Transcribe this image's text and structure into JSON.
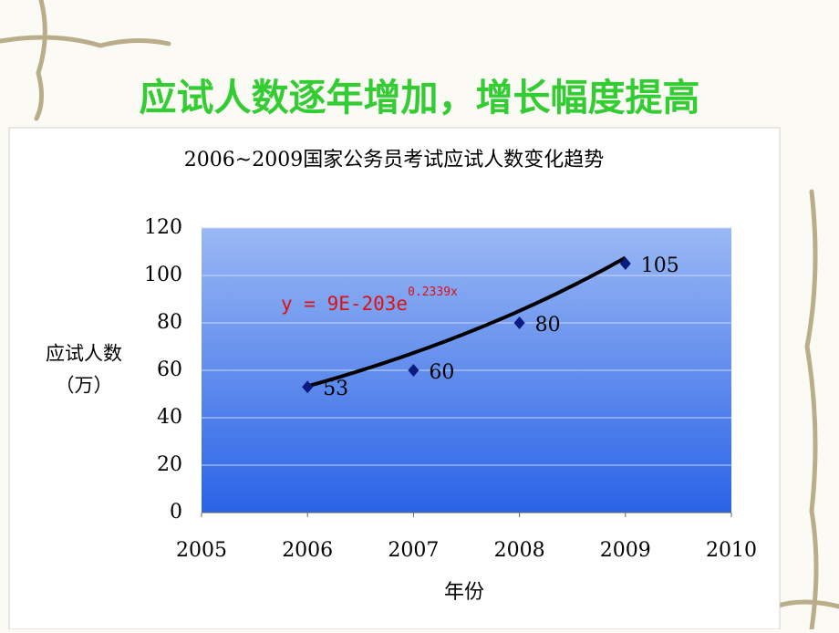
{
  "slide_title": "应试人数逐年增加，增长幅度提高",
  "chart_data": {
    "type": "scatter",
    "title": "2006~2009国家公务员考试应试人数变化趋势",
    "x_label": "年份",
    "y_label_lines": [
      "应试人数",
      "（万）"
    ],
    "x": [
      2006,
      2007,
      2008,
      2009
    ],
    "series": [
      {
        "name": "应试人数",
        "color": "#0a1a80",
        "values": [
          53,
          60,
          80,
          105
        ]
      }
    ],
    "xlim": [
      2005,
      2010
    ],
    "xticks": [
      2005,
      2006,
      2007,
      2008,
      2009,
      2010
    ],
    "ylim": [
      0,
      120
    ],
    "yticks": [
      0,
      20,
      40,
      60,
      80,
      100,
      120
    ],
    "grid": true,
    "trendline": {
      "kind": "exponential",
      "coefficient": 9e-203,
      "rate": 0.2339,
      "color": "#000000",
      "label_base": "y = 9E-203e",
      "label_exponent": "0.2339x"
    }
  }
}
